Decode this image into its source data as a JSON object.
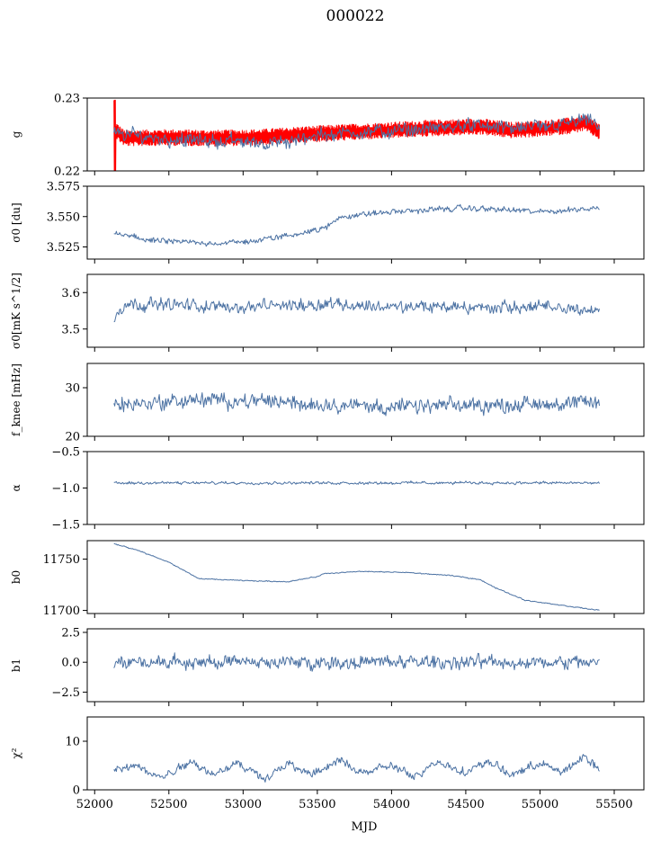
{
  "chart_data": {
    "title": "000022",
    "type": "line",
    "xlabel": "MJD",
    "xlim": [
      51950,
      55700
    ],
    "x_ticks": [
      52000,
      52500,
      53000,
      53500,
      54000,
      54500,
      55000,
      55500
    ],
    "x_range": [
      52130,
      55400
    ],
    "colors": {
      "blue": "#4c72a3",
      "red": "#ff0000"
    },
    "panels": [
      {
        "ylabel": "g",
        "ylim": [
          0.22,
          0.23
        ],
        "y_ticks": [
          "0.22",
          "0.23"
        ],
        "series": [
          {
            "color": "red",
            "wiggle": 0.0011,
            "noise": 0,
            "spikes": [
              0.2297,
              0.22
            ],
            "x": [
              52130,
              52200,
              52500,
              52800,
              53100,
              53400,
              53700,
              54000,
              54300,
              54600,
              54800,
              55000,
              55200,
              55300,
              55400
            ],
            "y": [
              0.2258,
              0.2245,
              0.2246,
              0.2245,
              0.2246,
              0.225,
              0.2253,
              0.2256,
              0.2259,
              0.2261,
              0.2256,
              0.2258,
              0.2262,
              0.2266,
              0.2254
            ]
          },
          {
            "color": "blue",
            "wiggle": 0,
            "noise": 0.001,
            "spikes": [],
            "x": [
              52130,
              52500,
              53000,
              53300,
              53500,
              54000,
              54500,
              55000,
              55300,
              55400
            ],
            "y": [
              0.2252,
              0.2243,
              0.224,
              0.2238,
              0.225,
              0.2255,
              0.2262,
              0.2258,
              0.227,
              0.2262
            ]
          }
        ]
      },
      {
        "ylabel": "σ0 [du]",
        "ylim": [
          3.515,
          3.575
        ],
        "y_ticks": [
          "3.525",
          "3.550",
          "3.575"
        ],
        "series": [
          {
            "color": "blue",
            "wiggle": 0,
            "noise": 0.0025,
            "spikes": [],
            "x": [
              52130,
              52400,
              52800,
              53100,
              53400,
              53550,
              53650,
              54000,
              54500,
              55000,
              55400
            ],
            "y": [
              3.536,
              3.53,
              3.528,
              3.53,
              3.537,
              3.54,
              3.55,
              3.554,
              3.557,
              3.554,
              3.557
            ]
          }
        ]
      },
      {
        "ylabel": "σ0[mK s^1/2]",
        "ylim": [
          3.45,
          3.65
        ],
        "y_ticks": [
          "3.5",
          "3.6"
        ],
        "series": [
          {
            "color": "blue",
            "wiggle": 0,
            "noise": 0.018,
            "spikes": [],
            "x": [
              52130,
              52200,
              53000,
              53600,
              54000,
              55000,
              55400
            ],
            "y": [
              3.53,
              3.57,
              3.56,
              3.57,
              3.56,
              3.56,
              3.55
            ]
          }
        ]
      },
      {
        "ylabel": "f_knee [mHz]",
        "ylim": [
          20,
          35
        ],
        "y_ticks": [
          "20",
          "30"
        ],
        "series": [
          {
            "color": "blue",
            "wiggle": 0,
            "noise": 1.6,
            "spikes": [],
            "x": [
              52130,
              52700,
              53300,
              54000,
              54800,
              55400
            ],
            "y": [
              26.5,
              27.5,
              27.0,
              26.0,
              26.5,
              27.0
            ]
          }
        ]
      },
      {
        "ylabel": "α",
        "ylim": [
          -1.5,
          -0.5
        ],
        "y_ticks": [
          "−1.5",
          "−1.0",
          "−0.5"
        ],
        "series": [
          {
            "color": "blue",
            "wiggle": 0,
            "noise": 0.02,
            "spikes": [],
            "x": [
              52130,
              55400
            ],
            "y": [
              -0.93,
              -0.93
            ]
          }
        ]
      },
      {
        "ylabel": "b0",
        "ylim": [
          11697,
          11768
        ],
        "y_ticks": [
          "11700",
          "11750"
        ],
        "series": [
          {
            "color": "blue",
            "wiggle": 0,
            "noise": 0.5,
            "spikes": [],
            "x": [
              52130,
              52300,
              52500,
              52700,
              53000,
              53300,
              53500,
              53550,
              53800,
              54100,
              54400,
              54600,
              54700,
              54900,
              55100,
              55400
            ],
            "y": [
              11765,
              11758,
              11747,
              11731,
              11729,
              11728,
              11733,
              11736,
              11738,
              11737,
              11734,
              11730,
              11722,
              11710,
              11706,
              11700
            ]
          }
        ]
      },
      {
        "ylabel": "b1",
        "ylim": [
          -3.3,
          2.8
        ],
        "y_ticks": [
          "−2.5",
          "0.0",
          "2.5"
        ],
        "series": [
          {
            "color": "blue",
            "wiggle": 0,
            "noise": 0.6,
            "spikes": [],
            "x": [
              52130,
              55400
            ],
            "y": [
              0.0,
              0.0
            ]
          }
        ]
      },
      {
        "ylabel": "χ²",
        "ylim": [
          0,
          15
        ],
        "y_ticks": [
          "0",
          "10"
        ],
        "series": [
          {
            "color": "blue",
            "wiggle": 0,
            "noise": 0.9,
            "spikes": [],
            "x": [
              52130,
              52300,
              52450,
              52650,
              52800,
              52950,
              53150,
              53300,
              53450,
              53650,
              53800,
              54000,
              54150,
              54300,
              54500,
              54650,
              54800,
              55000,
              55150,
              55300,
              55400
            ],
            "y": [
              4,
              5,
              2.5,
              6,
              3,
              5.5,
              2.5,
              5.5,
              3,
              6,
              3.5,
              5,
              2.5,
              6,
              3.5,
              6,
              3,
              5.5,
              3.5,
              7,
              4
            ]
          }
        ]
      }
    ]
  }
}
